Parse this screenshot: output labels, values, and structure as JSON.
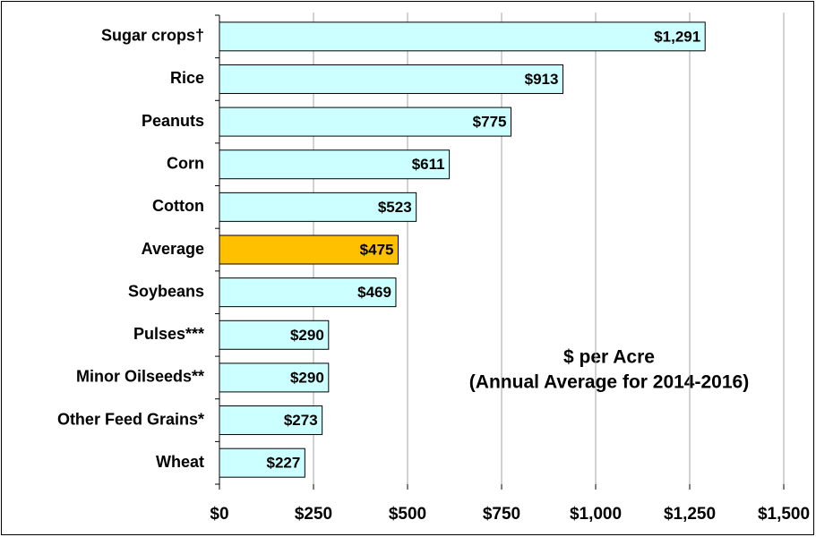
{
  "chart_data": {
    "type": "barh",
    "categories": [
      "Sugar crops†",
      "Rice",
      "Peanuts",
      "Corn",
      "Cotton",
      "Average",
      "Soybeans",
      "Pulses***",
      "Minor Oilseeds**",
      "Other Feed Grains*",
      "Wheat"
    ],
    "values": [
      1291,
      913,
      775,
      611,
      523,
      475,
      469,
      290,
      290,
      273,
      227
    ],
    "value_labels": [
      "$1,291",
      "$913",
      "$775",
      "$611",
      "$523",
      "$475",
      "$469",
      "$290",
      "$290",
      "$273",
      "$227"
    ],
    "colors": [
      "#ccffff",
      "#ccffff",
      "#ccffff",
      "#ccffff",
      "#ccffff",
      "#ffc000",
      "#ccffff",
      "#ccffff",
      "#ccffff",
      "#ccffff",
      "#ccffff"
    ],
    "xlim": [
      0,
      1500
    ],
    "xticks": [
      {
        "value": 0,
        "label": "$0"
      },
      {
        "value": 250,
        "label": "$250"
      },
      {
        "value": 500,
        "label": "$500"
      },
      {
        "value": 750,
        "label": "$750"
      },
      {
        "value": 1000,
        "label": "$1,000"
      },
      {
        "value": 1250,
        "label": "$1,250"
      },
      {
        "value": 1500,
        "label": "$1,500"
      }
    ],
    "grid": true,
    "annotations": [
      "$ per Acre",
      "(Annual Average for 2014-2016)"
    ]
  }
}
